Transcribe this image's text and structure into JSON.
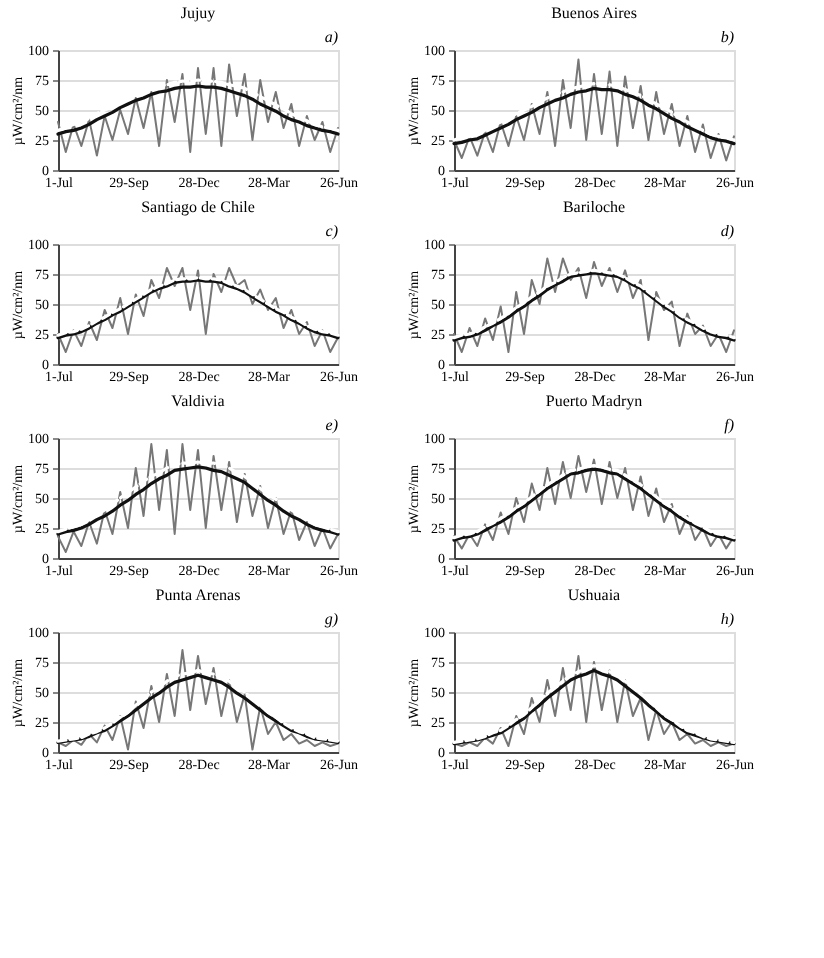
{
  "chart_data": [
    {
      "type": "line",
      "title": "Jujuy",
      "annotations": [
        "a)"
      ],
      "ylabel": "µW/cm²/nm",
      "ylim": [
        0,
        100
      ],
      "yticks": [
        0,
        25,
        50,
        75,
        100
      ],
      "grid": "y",
      "categories": [
        "1-Jul",
        null,
        null,
        null,
        null,
        null,
        null,
        null,
        null,
        "29-Sep",
        null,
        null,
        null,
        null,
        null,
        null,
        null,
        null,
        "28-Dec",
        null,
        null,
        null,
        null,
        null,
        null,
        null,
        null,
        "28-Mar",
        null,
        null,
        null,
        null,
        null,
        null,
        null,
        null,
        "26-Jun"
      ],
      "series": [
        {
          "color": "#777777",
          "values": [
            40,
            15,
            38,
            20,
            42,
            12,
            45,
            25,
            50,
            30,
            60,
            35,
            65,
            20,
            75,
            40,
            80,
            15,
            85,
            30,
            85,
            20,
            88,
            45,
            80,
            25,
            75,
            40,
            65,
            35,
            55,
            20,
            45,
            25,
            40,
            15,
            35
          ]
        },
        {
          "color": "#111111",
          "values": [
            30,
            32,
            33,
            35,
            38,
            42,
            45,
            48,
            52,
            55,
            58,
            60,
            63,
            65,
            66,
            68,
            69,
            69,
            70,
            69,
            69,
            68,
            66,
            64,
            62,
            59,
            55,
            52,
            49,
            45,
            42,
            40,
            37,
            35,
            33,
            32,
            30
          ]
        },
        {
          "color": "#ffffff",
          "line_style": "dashed",
          "values": [
            33,
            35,
            38,
            40,
            43,
            47,
            50,
            53,
            57,
            60,
            63,
            65,
            68,
            70,
            71,
            73,
            74,
            74,
            75,
            74,
            74,
            73,
            71,
            70,
            68,
            65,
            61,
            58,
            54,
            51,
            47,
            44,
            41,
            38,
            36,
            35,
            33
          ]
        }
      ]
    },
    {
      "type": "line",
      "title": "Buenos Aires",
      "annotations": [
        "b)"
      ],
      "ylabel": "µW/cm²/nm",
      "ylim": [
        0,
        100
      ],
      "yticks": [
        0,
        25,
        50,
        75,
        100
      ],
      "grid": "y",
      "categories": [
        "1-Jul",
        null,
        null,
        null,
        null,
        null,
        null,
        null,
        null,
        "29-Sep",
        null,
        null,
        null,
        null,
        null,
        null,
        null,
        null,
        "28-Dec",
        null,
        null,
        null,
        null,
        null,
        null,
        null,
        null,
        "28-Mar",
        null,
        null,
        null,
        null,
        null,
        null,
        null,
        null,
        "26-Jun"
      ],
      "series": [
        {
          "color": "#777777",
          "values": [
            25,
            10,
            28,
            12,
            32,
            15,
            40,
            20,
            45,
            25,
            55,
            30,
            65,
            20,
            75,
            35,
            92,
            25,
            80,
            30,
            82,
            20,
            78,
            35,
            70,
            25,
            65,
            30,
            55,
            20,
            45,
            15,
            38,
            10,
            30,
            8,
            28
          ]
        },
        {
          "color": "#111111",
          "values": [
            22,
            23,
            25,
            26,
            29,
            32,
            35,
            38,
            42,
            45,
            48,
            52,
            55,
            58,
            60,
            63,
            65,
            66,
            68,
            67,
            67,
            66,
            63,
            61,
            58,
            54,
            51,
            47,
            43,
            40,
            36,
            33,
            30,
            27,
            25,
            24,
            22
          ]
        },
        {
          "color": "#ffffff",
          "line_style": "dashed",
          "values": [
            25,
            27,
            28,
            30,
            33,
            37,
            40,
            43,
            47,
            50,
            53,
            57,
            60,
            63,
            65,
            68,
            69,
            71,
            72,
            71,
            71,
            70,
            67,
            65,
            62,
            59,
            55,
            52,
            48,
            44,
            40,
            37,
            33,
            30,
            28,
            27,
            25
          ]
        }
      ]
    },
    {
      "type": "line",
      "title": "Santiago de Chile",
      "annotations": [
        "c)"
      ],
      "ylabel": "µW/cm²/nm",
      "ylim": [
        0,
        100
      ],
      "yticks": [
        0,
        25,
        50,
        75,
        100
      ],
      "grid": "y",
      "categories": [
        "1-Jul",
        null,
        null,
        null,
        null,
        null,
        null,
        null,
        null,
        "29-Sep",
        null,
        null,
        null,
        null,
        null,
        null,
        null,
        null,
        "28-Dec",
        null,
        null,
        null,
        null,
        null,
        null,
        null,
        null,
        "28-Mar",
        null,
        null,
        null,
        null,
        null,
        null,
        null,
        null,
        "26-Jun"
      ],
      "series": [
        {
          "color": "#777777",
          "values": [
            25,
            10,
            28,
            15,
            35,
            20,
            45,
            30,
            55,
            25,
            58,
            40,
            70,
            55,
            80,
            65,
            80,
            45,
            78,
            25,
            75,
            60,
            80,
            65,
            70,
            50,
            62,
            45,
            55,
            30,
            45,
            25,
            35,
            15,
            28,
            10,
            22
          ]
        },
        {
          "color": "#111111",
          "values": [
            22,
            24,
            25,
            27,
            30,
            34,
            37,
            41,
            44,
            48,
            52,
            56,
            60,
            63,
            65,
            68,
            69,
            69,
            70,
            69,
            69,
            68,
            65,
            63,
            60,
            56,
            52,
            48,
            44,
            41,
            37,
            34,
            30,
            27,
            25,
            24,
            22
          ]
        },
        {
          "color": "#ffffff",
          "line_style": "dashed",
          "values": [
            24,
            26,
            27,
            29,
            32,
            36,
            39,
            43,
            46,
            50,
            54,
            58,
            62,
            65,
            67,
            70,
            71,
            71,
            72,
            71,
            71,
            70,
            67,
            65,
            62,
            58,
            54,
            50,
            46,
            43,
            39,
            36,
            32,
            29,
            27,
            26,
            24
          ]
        }
      ]
    },
    {
      "type": "line",
      "title": "Bariloche",
      "annotations": [
        "d)"
      ],
      "ylabel": "µW/cm²/nm",
      "ylim": [
        0,
        100
      ],
      "yticks": [
        0,
        25,
        50,
        75,
        100
      ],
      "grid": "y",
      "categories": [
        "1-Jul",
        null,
        null,
        null,
        null,
        null,
        null,
        null,
        null,
        "29-Sep",
        null,
        null,
        null,
        null,
        null,
        null,
        null,
        null,
        "28-Dec",
        null,
        null,
        null,
        null,
        null,
        null,
        null,
        null,
        "28-Mar",
        null,
        null,
        null,
        null,
        null,
        null,
        null,
        null,
        "26-Jun"
      ],
      "series": [
        {
          "color": "#777777",
          "values": [
            25,
            10,
            30,
            15,
            38,
            20,
            48,
            10,
            60,
            25,
            70,
            50,
            88,
            60,
            88,
            70,
            80,
            55,
            85,
            65,
            80,
            60,
            78,
            55,
            70,
            20,
            60,
            45,
            52,
            15,
            42,
            25,
            32,
            15,
            25,
            10,
            28
          ]
        },
        {
          "color": "#111111",
          "values": [
            20,
            22,
            23,
            25,
            28,
            32,
            35,
            39,
            44,
            48,
            53,
            57,
            62,
            66,
            69,
            73,
            74,
            75,
            76,
            75,
            74,
            73,
            70,
            66,
            63,
            58,
            53,
            48,
            44,
            39,
            35,
            32,
            28,
            25,
            23,
            22,
            20
          ]
        },
        {
          "color": "#ffffff",
          "line_style": "dashed",
          "values": [
            22,
            24,
            25,
            27,
            31,
            34,
            38,
            42,
            47,
            51,
            56,
            60,
            65,
            68,
            72,
            75,
            76,
            77,
            78,
            77,
            76,
            75,
            72,
            68,
            65,
            60,
            55,
            50,
            46,
            41,
            37,
            34,
            30,
            27,
            25,
            24,
            22
          ]
        }
      ]
    },
    {
      "type": "line",
      "title": "Valdivia",
      "annotations": [
        "e)"
      ],
      "ylabel": "µW/cm²/nm",
      "ylim": [
        0,
        100
      ],
      "yticks": [
        0,
        25,
        50,
        75,
        100
      ],
      "grid": "y",
      "categories": [
        "1-Jul",
        null,
        null,
        null,
        null,
        null,
        null,
        null,
        null,
        "29-Sep",
        null,
        null,
        null,
        null,
        null,
        null,
        null,
        null,
        "28-Dec",
        null,
        null,
        null,
        null,
        null,
        null,
        null,
        null,
        "28-Mar",
        null,
        null,
        null,
        null,
        null,
        null,
        null,
        null,
        "26-Jun"
      ],
      "series": [
        {
          "color": "#777777",
          "values": [
            18,
            5,
            22,
            10,
            30,
            12,
            40,
            20,
            55,
            25,
            75,
            35,
            95,
            40,
            90,
            20,
            95,
            40,
            90,
            25,
            85,
            40,
            80,
            30,
            70,
            35,
            60,
            25,
            50,
            20,
            40,
            15,
            30,
            10,
            25,
            8,
            20
          ]
        },
        {
          "color": "#111111",
          "values": [
            20,
            22,
            23,
            25,
            28,
            32,
            35,
            39,
            44,
            48,
            53,
            57,
            62,
            66,
            69,
            73,
            74,
            75,
            76,
            75,
            73,
            72,
            69,
            66,
            63,
            58,
            53,
            48,
            44,
            39,
            35,
            32,
            28,
            25,
            23,
            22,
            20
          ]
        },
        {
          "color": "#ffffff",
          "line_style": "dashed",
          "values": [
            22,
            24,
            26,
            28,
            32,
            36,
            40,
            45,
            50,
            55,
            59,
            64,
            68,
            71,
            75,
            78,
            79,
            79,
            80,
            79,
            79,
            78,
            75,
            71,
            68,
            63,
            58,
            53,
            49,
            44,
            40,
            36,
            32,
            28,
            26,
            24,
            22
          ]
        }
      ]
    },
    {
      "type": "line",
      "title": "Puerto Madryn",
      "annotations": [
        "f)"
      ],
      "ylabel": "µW/cm²/nm",
      "ylim": [
        0,
        100
      ],
      "yticks": [
        0,
        25,
        50,
        75,
        100
      ],
      "grid": "y",
      "categories": [
        "1-Jul",
        null,
        null,
        null,
        null,
        null,
        null,
        null,
        null,
        "29-Sep",
        null,
        null,
        null,
        null,
        null,
        null,
        null,
        null,
        "28-Dec",
        null,
        null,
        null,
        null,
        null,
        null,
        null,
        null,
        "28-Mar",
        null,
        null,
        null,
        null,
        null,
        null,
        null,
        null,
        "26-Jun"
      ],
      "series": [
        {
          "color": "#777777",
          "values": [
            18,
            8,
            20,
            10,
            28,
            15,
            38,
            20,
            50,
            30,
            62,
            40,
            75,
            45,
            80,
            50,
            85,
            55,
            82,
            45,
            80,
            50,
            75,
            40,
            68,
            35,
            58,
            30,
            45,
            20,
            35,
            15,
            25,
            10,
            20,
            8,
            18
          ]
        },
        {
          "color": "#111111",
          "values": [
            15,
            17,
            18,
            20,
            23,
            27,
            30,
            34,
            39,
            43,
            48,
            53,
            58,
            62,
            66,
            70,
            71,
            73,
            74,
            73,
            71,
            70,
            66,
            62,
            58,
            53,
            48,
            43,
            39,
            34,
            30,
            27,
            23,
            20,
            18,
            17,
            15
          ]
        },
        {
          "color": "#ffffff",
          "line_style": "dashed",
          "values": [
            17,
            19,
            20,
            22,
            26,
            29,
            33,
            37,
            42,
            46,
            51,
            56,
            61,
            65,
            69,
            73,
            74,
            76,
            77,
            76,
            74,
            73,
            69,
            65,
            61,
            56,
            51,
            46,
            42,
            37,
            33,
            29,
            26,
            22,
            20,
            19,
            17
          ]
        }
      ]
    },
    {
      "type": "line",
      "title": "Punta Arenas",
      "annotations": [
        "g)"
      ],
      "ylabel": "µW/cm²/nm",
      "ylim": [
        0,
        100
      ],
      "yticks": [
        0,
        25,
        50,
        75,
        100
      ],
      "grid": "y",
      "categories": [
        "1-Jul",
        null,
        null,
        null,
        null,
        null,
        null,
        null,
        null,
        "29-Sep",
        null,
        null,
        null,
        null,
        null,
        null,
        null,
        null,
        "28-Dec",
        null,
        null,
        null,
        null,
        null,
        null,
        null,
        null,
        "28-Mar",
        null,
        null,
        null,
        null,
        null,
        null,
        null,
        null,
        "26-Jun"
      ],
      "series": [
        {
          "color": "#777777",
          "values": [
            8,
            5,
            10,
            6,
            15,
            8,
            22,
            10,
            30,
            2,
            42,
            20,
            55,
            25,
            65,
            30,
            85,
            35,
            80,
            40,
            70,
            30,
            60,
            25,
            48,
            2,
            38,
            15,
            25,
            10,
            15,
            7,
            10,
            5,
            8,
            5,
            7
          ]
        },
        {
          "color": "#111111",
          "values": [
            8,
            9,
            10,
            11,
            13,
            16,
            18,
            22,
            26,
            30,
            35,
            40,
            45,
            49,
            54,
            58,
            60,
            62,
            64,
            62,
            60,
            58,
            54,
            49,
            45,
            40,
            35,
            30,
            26,
            22,
            18,
            16,
            13,
            11,
            10,
            9,
            8
          ]
        },
        {
          "color": "#ffffff",
          "line_style": "dashed",
          "values": [
            9,
            10,
            11,
            12,
            15,
            17,
            20,
            24,
            29,
            33,
            39,
            44,
            50,
            54,
            59,
            63,
            65,
            66,
            68,
            66,
            65,
            63,
            59,
            54,
            50,
            44,
            39,
            33,
            29,
            24,
            20,
            17,
            15,
            12,
            11,
            10,
            9
          ]
        }
      ]
    },
    {
      "type": "line",
      "title": "Ushuaia",
      "annotations": [
        "h)"
      ],
      "ylabel": "µW/cm²/nm",
      "ylim": [
        0,
        100
      ],
      "yticks": [
        0,
        25,
        50,
        75,
        100
      ],
      "grid": "y",
      "categories": [
        "1-Jul",
        null,
        null,
        null,
        null,
        null,
        null,
        null,
        null,
        "29-Sep",
        null,
        null,
        null,
        null,
        null,
        null,
        null,
        null,
        "28-Dec",
        null,
        null,
        null,
        null,
        null,
        null,
        null,
        null,
        "28-Mar",
        null,
        null,
        null,
        null,
        null,
        null,
        null,
        null,
        "26-Jun"
      ],
      "series": [
        {
          "color": "#777777",
          "values": [
            7,
            5,
            8,
            5,
            12,
            7,
            20,
            5,
            30,
            15,
            45,
            25,
            60,
            30,
            70,
            35,
            80,
            25,
            75,
            35,
            68,
            25,
            60,
            30,
            45,
            10,
            35,
            15,
            25,
            10,
            15,
            7,
            10,
            5,
            8,
            5,
            7
          ]
        },
        {
          "color": "#111111",
          "values": [
            7,
            8,
            9,
            10,
            12,
            14,
            16,
            20,
            24,
            28,
            34,
            39,
            45,
            50,
            55,
            60,
            63,
            65,
            68,
            65,
            63,
            60,
            55,
            50,
            45,
            39,
            34,
            28,
            24,
            20,
            16,
            14,
            12,
            10,
            9,
            8,
            7
          ]
        },
        {
          "color": "#ffffff",
          "line_style": "dashed",
          "values": [
            8,
            9,
            10,
            11,
            13,
            16,
            18,
            22,
            27,
            31,
            37,
            43,
            49,
            54,
            59,
            64,
            67,
            69,
            72,
            69,
            67,
            64,
            59,
            54,
            49,
            43,
            37,
            31,
            27,
            22,
            18,
            16,
            13,
            11,
            10,
            9,
            8
          ]
        }
      ]
    }
  ]
}
